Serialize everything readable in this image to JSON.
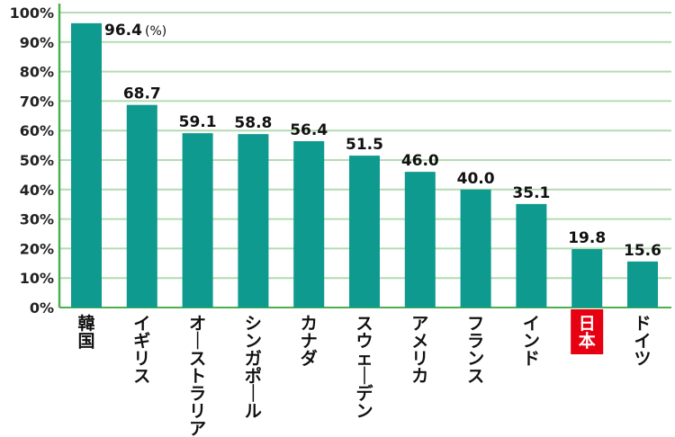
{
  "chart_data": {
    "type": "bar",
    "categories": [
      "韓国",
      "イギリス",
      "オーストラリア",
      "シンガポール",
      "カナダ",
      "スウェーデン",
      "アメリカ",
      "フランス",
      "インド",
      "日本",
      "ドイツ"
    ],
    "values": [
      96.4,
      68.7,
      59.1,
      58.8,
      56.4,
      51.5,
      46.0,
      40.0,
      35.1,
      19.8,
      15.6
    ],
    "value_labels": [
      "96.4",
      "68.7",
      "59.1",
      "58.8",
      "56.4",
      "51.5",
      "46.0",
      "40.0",
      "35.1",
      "19.8",
      "15.6"
    ],
    "unit_label": "(%)",
    "y_ticks": [
      "0%",
      "10%",
      "20%",
      "30%",
      "40%",
      "50%",
      "60%",
      "70%",
      "80%",
      "90%",
      "100%"
    ],
    "ylim": [
      0,
      100
    ],
    "grid": true,
    "highlight_category": "日本",
    "colors": {
      "bar": "#0e9a8e",
      "grid": "#b3dcb0",
      "axis": "#4caf50",
      "highlight_bg": "#e60012",
      "highlight_text": "#ffffff"
    }
  }
}
